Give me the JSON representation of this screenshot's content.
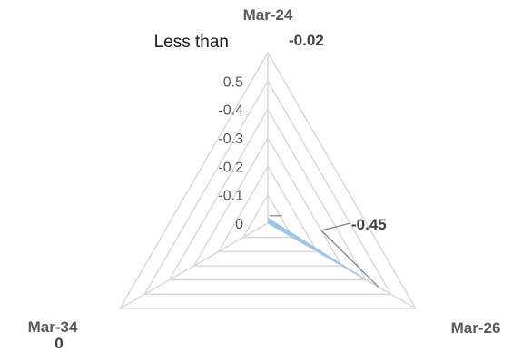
{
  "chart_data": {
    "type": "radar",
    "categories": [
      "Mar-24",
      "Mar-26",
      "Mar-34"
    ],
    "series": [
      {
        "values": [
          -0.02,
          -0.45,
          0
        ],
        "color": "#9dc3e6"
      }
    ],
    "data_labels": [
      "-0.02",
      "-0.45",
      "0"
    ],
    "axis": {
      "ticks": [
        "0",
        "-0.1",
        "-0.2",
        "-0.3",
        "-0.4",
        "-0.5"
      ],
      "min": -0.6,
      "max": 0,
      "orientation": "reversed"
    },
    "annotation": "Less than",
    "grid": true,
    "grid_color": "#d9d9d9",
    "leader_line_color": "#808080"
  }
}
